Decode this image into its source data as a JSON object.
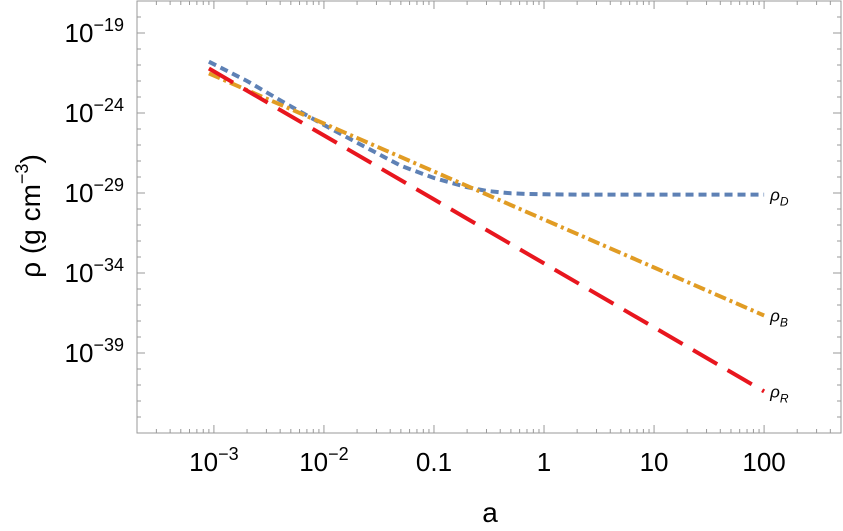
{
  "chart_data": {
    "type": "line",
    "xlabel": "a",
    "ylabel": "ρ (g cm",
    "ylabel_exp": "−3",
    "ylabel_close": ")",
    "x_scale": "log",
    "y_scale": "log",
    "xlim": [
      0.0002,
      500
    ],
    "ylim": [
      1e-44,
      1e-17
    ],
    "grid": false,
    "legend": "inline-right",
    "x_ticks": [
      {
        "value": 0.001,
        "base": "10",
        "exp": "−3",
        "text": ""
      },
      {
        "value": 0.01,
        "base": "10",
        "exp": "−2",
        "text": ""
      },
      {
        "value": 0.1,
        "base": "",
        "exp": "",
        "text": "0.1"
      },
      {
        "value": 1,
        "base": "",
        "exp": "",
        "text": "1"
      },
      {
        "value": 10,
        "base": "",
        "exp": "",
        "text": "10"
      },
      {
        "value": 100,
        "base": "",
        "exp": "",
        "text": "100"
      }
    ],
    "y_ticks": [
      {
        "value": 1e-19,
        "base": "10",
        "exp": "−19"
      },
      {
        "value": 1e-24,
        "base": "10",
        "exp": "−24"
      },
      {
        "value": 1e-29,
        "base": "10",
        "exp": "−29"
      },
      {
        "value": 1e-34,
        "base": "10",
        "exp": "−34"
      },
      {
        "value": 1e-39,
        "base": "10",
        "exp": "−39"
      }
    ],
    "series": [
      {
        "name": "ρ",
        "subscript": "D",
        "color": "#5e81b5",
        "dash": "dashed",
        "x": [
          0.0009,
          0.002,
          0.005,
          0.01,
          0.02,
          0.05,
          0.1,
          0.2,
          0.3,
          0.5,
          0.7,
          1,
          1.5,
          2,
          5,
          10,
          30,
          100
        ],
        "y": [
          1.6e-21,
          1e-22,
          2.6e-24,
          1.8e-25,
          1.4e-26,
          5e-28,
          8.7e-29,
          2.3e-29,
          1.36e-29,
          9.6e-30,
          8.7e-30,
          8.3e-30,
          8.1e-30,
          8e-30,
          8e-30,
          8e-30,
          8e-30,
          8e-30
        ]
      },
      {
        "name": "ρ",
        "subscript": "B",
        "color": "#e19c24",
        "dash": "dashdot",
        "x": [
          0.0009,
          0.003,
          0.01,
          0.1,
          1,
          10,
          100
        ],
        "y": [
          3e-22,
          8e-24,
          2.2e-25,
          2.2e-28,
          2.2e-31,
          2.2e-34,
          2.2e-37
        ]
      },
      {
        "name": "ρ",
        "subscript": "R",
        "color": "#e8161e",
        "dash": "longdash",
        "x": [
          0.0009,
          0.001,
          0.01,
          0.1,
          1,
          10,
          100
        ],
        "y": [
          6e-22,
          4e-22,
          4e-26,
          4e-30,
          4e-34,
          4e-38,
          4e-42
        ]
      }
    ]
  }
}
